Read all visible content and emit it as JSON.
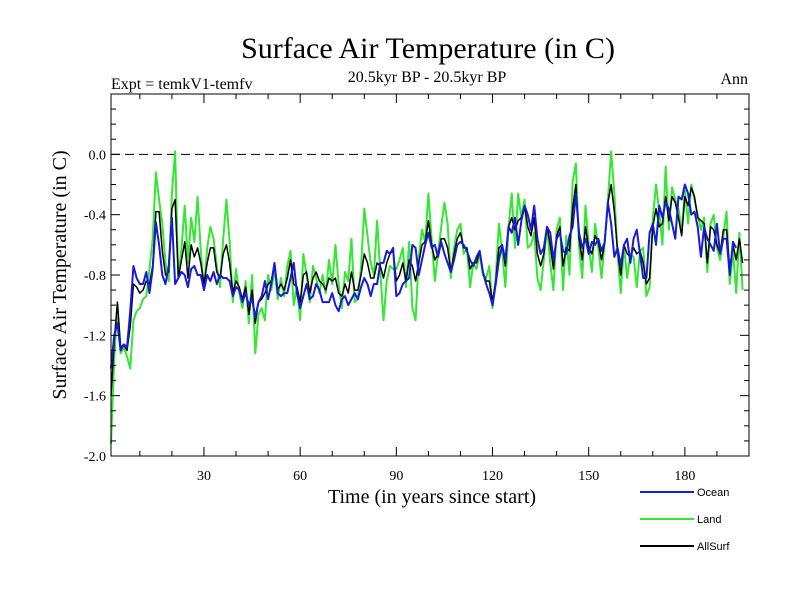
{
  "chart_data": {
    "type": "line",
    "title": "Surface Air Temperature (in C)",
    "experiment": "Expt = temkV1-temfv",
    "period": "20.5kyr BP - 20.5kyr BP",
    "season": "Ann",
    "xlabel": "Time (in years since start)",
    "ylabel": "Surface Air Temperature (in C)",
    "xlim": [
      1,
      200
    ],
    "ylim": [
      -2.0,
      0.4
    ],
    "x_ticks": [
      30,
      60,
      90,
      120,
      150,
      180
    ],
    "y_ticks": [
      -2.0,
      -1.6,
      -1.2,
      -0.8,
      -0.4,
      0.0
    ],
    "x_tick_labels": [
      "30",
      "60",
      "90",
      "120",
      "150",
      "180"
    ],
    "y_tick_labels": [
      "-2.0",
      "-1.6",
      "-1.2",
      "-0.8",
      "-0.4",
      "0.0"
    ],
    "reference_line": 0.0,
    "legend_position": "bottom-right",
    "series": [
      {
        "name": "Ocean",
        "color": "#1a1adb",
        "x_start": 1,
        "values": [
          -1.42,
          -1.2,
          -1.12,
          -1.3,
          -1.26,
          -1.28,
          -1.04,
          -0.74,
          -0.82,
          -0.86,
          -0.86,
          -0.78,
          -0.92,
          -0.76,
          -0.45,
          -0.6,
          -0.8,
          -0.86,
          -0.74,
          -0.42,
          -0.86,
          -0.82,
          -0.78,
          -0.8,
          -0.88,
          -0.76,
          -0.74,
          -0.8,
          -0.8,
          -0.9,
          -0.8,
          -0.84,
          -0.78,
          -0.86,
          -0.8,
          -0.82,
          -0.82,
          -0.84,
          -0.94,
          -0.88,
          -0.9,
          -0.98,
          -0.92,
          -1.0,
          -0.96,
          -1.08,
          -0.98,
          -0.94,
          -0.84,
          -0.96,
          -0.86,
          -0.72,
          -0.92,
          -0.94,
          -0.92,
          -0.92,
          -0.82,
          -0.72,
          -0.92,
          -1.02,
          -0.94,
          -0.86,
          -0.96,
          -0.94,
          -0.86,
          -0.9,
          -0.98,
          -0.98,
          -0.98,
          -0.92,
          -1.0,
          -1.04,
          -0.96,
          -0.94,
          -1.0,
          -0.96,
          -0.92,
          -0.96,
          -0.88,
          -0.82,
          -0.86,
          -0.94,
          -0.86,
          -0.86,
          -0.72,
          -0.72,
          -0.64,
          -0.66,
          -0.62,
          -0.94,
          -0.92,
          -0.86,
          -0.84,
          -0.82,
          -0.6,
          -0.62,
          -0.8,
          -0.7,
          -0.6,
          -0.52,
          -0.62,
          -0.6,
          -0.68,
          -0.58,
          -0.66,
          -0.72,
          -0.78,
          -0.7,
          -0.6,
          -0.58,
          -0.6,
          -0.64,
          -0.7,
          -0.74,
          -0.68,
          -0.64,
          -0.78,
          -0.86,
          -0.92,
          -1.0,
          -0.86,
          -0.7,
          -0.6,
          -0.7,
          -0.48,
          -0.52,
          -0.42,
          -0.6,
          -0.44,
          -0.34,
          -0.4,
          -0.5,
          -0.34,
          -0.56,
          -0.66,
          -0.62,
          -0.48,
          -0.52,
          -0.7,
          -0.56,
          -0.52,
          -0.64,
          -0.66,
          -0.54,
          -0.48,
          -0.26,
          -0.52,
          -0.62,
          -0.56,
          -0.66,
          -0.58,
          -0.6,
          -0.56,
          -0.64,
          -0.58,
          -0.32,
          -0.46,
          -0.68,
          -0.62,
          -0.74,
          -0.6,
          -0.56,
          -0.72,
          -0.56,
          -0.5,
          -0.66,
          -0.82,
          -0.82,
          -0.52,
          -0.46,
          -0.6,
          -0.34,
          -0.42,
          -0.32,
          -0.36,
          -0.46,
          -0.56,
          -0.28,
          -0.3,
          -0.2,
          -0.26,
          -0.4,
          -0.38,
          -0.48,
          -0.68,
          -0.48,
          -0.56,
          -0.6,
          -0.64,
          -0.46,
          -0.66,
          -0.56,
          -0.56,
          -0.8,
          -0.58,
          -0.62
        ]
      },
      {
        "name": "Land",
        "color": "#33e733",
        "x_start": 1,
        "values": [
          -1.92,
          -1.36,
          -1.0,
          -1.32,
          -1.28,
          -1.34,
          -1.42,
          -1.1,
          -1.04,
          -1.02,
          -0.96,
          -0.94,
          -0.76,
          -0.56,
          -0.12,
          -0.3,
          -0.46,
          -0.72,
          -0.84,
          -0.26,
          0.02,
          -0.82,
          -0.62,
          -0.34,
          -0.72,
          -0.42,
          -0.58,
          -0.28,
          -0.64,
          -0.9,
          -0.62,
          -0.48,
          -0.56,
          -0.74,
          -0.88,
          -0.56,
          -0.3,
          -0.58,
          -0.98,
          -0.76,
          -0.92,
          -1.02,
          -0.84,
          -1.12,
          -0.8,
          -1.32,
          -1.06,
          -1.02,
          -1.1,
          -0.8,
          -0.9,
          -0.76,
          -0.96,
          -0.82,
          -0.94,
          -0.74,
          -0.64,
          -1.0,
          -0.88,
          -1.1,
          -0.66,
          -0.8,
          -0.98,
          -0.74,
          -0.82,
          -0.92,
          -0.8,
          -0.92,
          -0.7,
          -0.86,
          -0.6,
          -0.86,
          -1.02,
          -0.78,
          -0.84,
          -0.56,
          -0.98,
          -0.96,
          -0.74,
          -0.36,
          -0.54,
          -0.72,
          -0.8,
          -0.44,
          -0.78,
          -1.1,
          -0.84,
          -0.74,
          -0.76,
          -0.76,
          -0.7,
          -0.62,
          -0.88,
          -0.58,
          -1.02,
          -1.1,
          -0.68,
          -0.5,
          -0.58,
          -0.26,
          -0.56,
          -0.84,
          -0.66,
          -0.48,
          -0.32,
          -0.46,
          -0.82,
          -0.62,
          -0.5,
          -0.46,
          -0.66,
          -0.62,
          -0.88,
          -0.72,
          -0.76,
          -0.66,
          -0.8,
          -0.82,
          -0.74,
          -1.02,
          -0.82,
          -0.46,
          -0.64,
          -0.88,
          -0.48,
          -0.26,
          -0.62,
          -0.26,
          -0.42,
          -0.3,
          -0.62,
          -0.6,
          -0.52,
          -0.82,
          -0.9,
          -0.7,
          -0.48,
          -0.72,
          -0.9,
          -0.5,
          -0.42,
          -0.9,
          -0.54,
          -0.8,
          -0.18,
          -0.06,
          -0.62,
          -0.82,
          -0.34,
          -0.6,
          -0.78,
          -0.46,
          -0.62,
          -0.82,
          -0.58,
          -0.3,
          0.02,
          -0.26,
          -0.66,
          -0.92,
          -0.6,
          -0.82,
          -0.66,
          -0.68,
          -0.88,
          -0.64,
          -0.62,
          -0.94,
          -0.88,
          -0.42,
          -0.2,
          -0.38,
          -0.6,
          -0.08,
          -0.5,
          -0.22,
          -0.3,
          -0.36,
          -0.52,
          -0.24,
          -0.46,
          -0.2,
          -0.3,
          -0.4,
          -0.5,
          -0.42,
          -0.78,
          -0.46,
          -0.4,
          -0.62,
          -0.7,
          -0.54,
          -0.38,
          -0.86,
          -0.64,
          -0.92,
          -0.52,
          -0.9
        ]
      },
      {
        "name": "AllSurf",
        "color": "#000000",
        "x_start": 1,
        "values": [
          -1.6,
          -1.24,
          -0.98,
          -1.28,
          -1.26,
          -1.3,
          -1.14,
          -0.86,
          -0.88,
          -0.92,
          -0.9,
          -0.84,
          -0.86,
          -0.74,
          -0.38,
          -0.38,
          -0.64,
          -0.8,
          -0.78,
          -0.36,
          -0.3,
          -0.82,
          -0.7,
          -0.58,
          -0.82,
          -0.6,
          -0.68,
          -0.62,
          -0.72,
          -0.86,
          -0.72,
          -0.62,
          -0.62,
          -0.78,
          -0.82,
          -0.66,
          -0.6,
          -0.72,
          -0.92,
          -0.84,
          -0.88,
          -0.96,
          -0.88,
          -1.06,
          -0.9,
          -1.12,
          -0.98,
          -0.96,
          -0.92,
          -0.86,
          -0.84,
          -0.72,
          -0.9,
          -0.86,
          -0.9,
          -0.82,
          -0.7,
          -0.86,
          -0.88,
          -0.98,
          -0.8,
          -0.78,
          -0.92,
          -0.82,
          -0.78,
          -0.84,
          -0.86,
          -0.9,
          -0.82,
          -0.84,
          -0.82,
          -0.92,
          -0.94,
          -0.86,
          -0.92,
          -0.78,
          -0.9,
          -0.9,
          -0.8,
          -0.66,
          -0.72,
          -0.82,
          -0.82,
          -0.72,
          -0.74,
          -0.82,
          -0.72,
          -0.66,
          -0.64,
          -0.84,
          -0.8,
          -0.72,
          -0.84,
          -0.7,
          -0.74,
          -0.84,
          -0.72,
          -0.6,
          -0.58,
          -0.44,
          -0.6,
          -0.7,
          -0.66,
          -0.56,
          -0.56,
          -0.62,
          -0.78,
          -0.66,
          -0.56,
          -0.52,
          -0.62,
          -0.62,
          -0.76,
          -0.72,
          -0.72,
          -0.64,
          -0.78,
          -0.84,
          -0.84,
          -0.98,
          -0.84,
          -0.62,
          -0.6,
          -0.74,
          -0.48,
          -0.42,
          -0.5,
          -0.44,
          -0.42,
          -0.34,
          -0.48,
          -0.54,
          -0.42,
          -0.66,
          -0.74,
          -0.66,
          -0.48,
          -0.6,
          -0.76,
          -0.54,
          -0.48,
          -0.74,
          -0.62,
          -0.64,
          -0.36,
          -0.2,
          -0.56,
          -0.7,
          -0.48,
          -0.62,
          -0.66,
          -0.54,
          -0.58,
          -0.7,
          -0.58,
          -0.32,
          -0.2,
          -0.38,
          -0.64,
          -0.8,
          -0.6,
          -0.66,
          -0.68,
          -0.62,
          -0.66,
          -0.64,
          -0.72,
          -0.86,
          -0.82,
          -0.48,
          -0.36,
          -0.48,
          -0.46,
          -0.28,
          -0.44,
          -0.28,
          -0.32,
          -0.42,
          -0.54,
          -0.28,
          -0.34,
          -0.22,
          -0.28,
          -0.42,
          -0.44,
          -0.46,
          -0.72,
          -0.48,
          -0.5,
          -0.6,
          -0.66,
          -0.5,
          -0.5,
          -0.76,
          -0.6,
          -0.7,
          -0.56,
          -0.72
        ]
      }
    ]
  }
}
